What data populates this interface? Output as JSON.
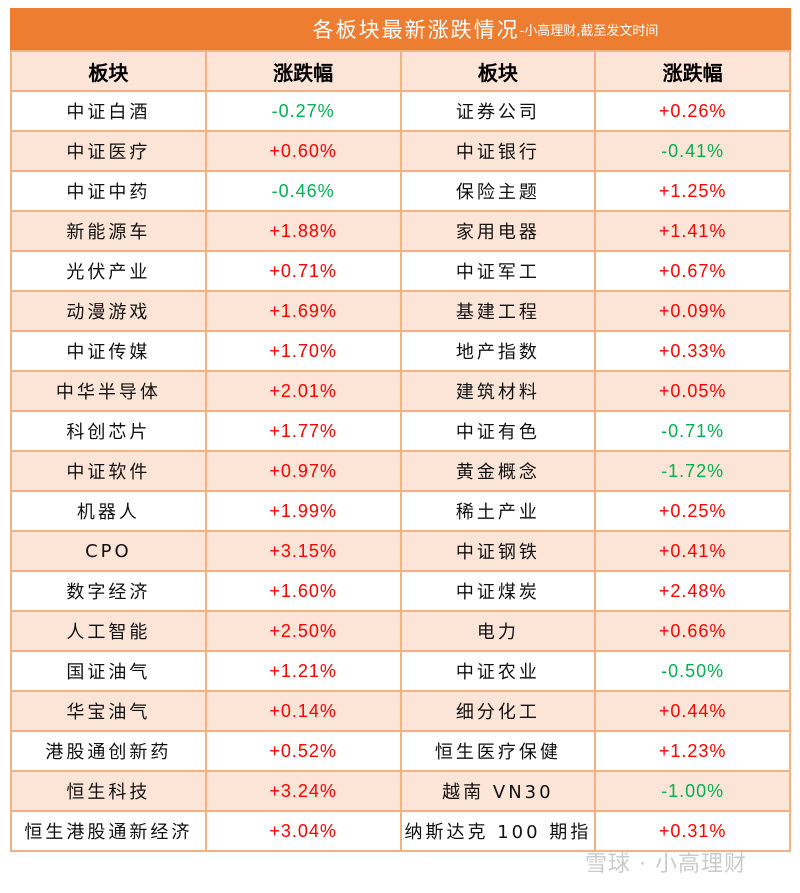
{
  "title": {
    "main": "各板块最新涨跌情况",
    "sub": "-小高理财,截至发文时间"
  },
  "headers": [
    "板块",
    "涨跌幅",
    "板块",
    "涨跌幅"
  ],
  "colors": {
    "up": "#FF0000",
    "down": "#00B050",
    "title_bg": "#ED7D31",
    "alt_row": "#FCE4D6",
    "border": "#F4B183"
  },
  "rows": [
    {
      "left_name": "中证白酒",
      "left_change": "-0.27%",
      "right_name": "证券公司",
      "right_change": "+0.26%"
    },
    {
      "left_name": "中证医疗",
      "left_change": "+0.60%",
      "right_name": "中证银行",
      "right_change": "-0.41%"
    },
    {
      "left_name": "中证中药",
      "left_change": "-0.46%",
      "right_name": "保险主题",
      "right_change": "+1.25%"
    },
    {
      "left_name": "新能源车",
      "left_change": "+1.88%",
      "right_name": "家用电器",
      "right_change": "+1.41%"
    },
    {
      "left_name": "光伏产业",
      "left_change": "+0.71%",
      "right_name": "中证军工",
      "right_change": "+0.67%"
    },
    {
      "left_name": "动漫游戏",
      "left_change": "+1.69%",
      "right_name": "基建工程",
      "right_change": "+0.09%"
    },
    {
      "left_name": "中证传媒",
      "left_change": "+1.70%",
      "right_name": "地产指数",
      "right_change": "+0.33%"
    },
    {
      "left_name": "中华半导体",
      "left_change": "+2.01%",
      "right_name": "建筑材料",
      "right_change": "+0.05%"
    },
    {
      "left_name": "科创芯片",
      "left_change": "+1.77%",
      "right_name": "中证有色",
      "right_change": "-0.71%"
    },
    {
      "left_name": "中证软件",
      "left_change": "+0.97%",
      "right_name": "黄金概念",
      "right_change": "-1.72%"
    },
    {
      "left_name": "机器人",
      "left_change": "+1.99%",
      "right_name": "稀土产业",
      "right_change": "+0.25%"
    },
    {
      "left_name": "CPO",
      "left_change": "+3.15%",
      "right_name": "中证钢铁",
      "right_change": "+0.41%"
    },
    {
      "left_name": "数字经济",
      "left_change": "+1.60%",
      "right_name": "中证煤炭",
      "right_change": "+2.48%"
    },
    {
      "left_name": "人工智能",
      "left_change": "+2.50%",
      "right_name": "电力",
      "right_change": "+0.66%"
    },
    {
      "left_name": "国证油气",
      "left_change": "+1.21%",
      "right_name": "中证农业",
      "right_change": "-0.50%"
    },
    {
      "left_name": "华宝油气",
      "left_change": "+0.14%",
      "right_name": "细分化工",
      "right_change": "+0.44%"
    },
    {
      "left_name": "港股通创新药",
      "left_change": "+0.52%",
      "right_name": "恒生医疗保健",
      "right_change": "+1.23%"
    },
    {
      "left_name": "恒生科技",
      "left_change": "+3.24%",
      "right_name": "越南 VN30",
      "right_change": "-1.00%"
    },
    {
      "left_name": "恒生港股通新经济",
      "left_change": "+3.04%",
      "right_name": "纳斯达克 100 期指",
      "right_change": "+0.31%"
    }
  ],
  "watermark": "雪球 · 小高理财"
}
